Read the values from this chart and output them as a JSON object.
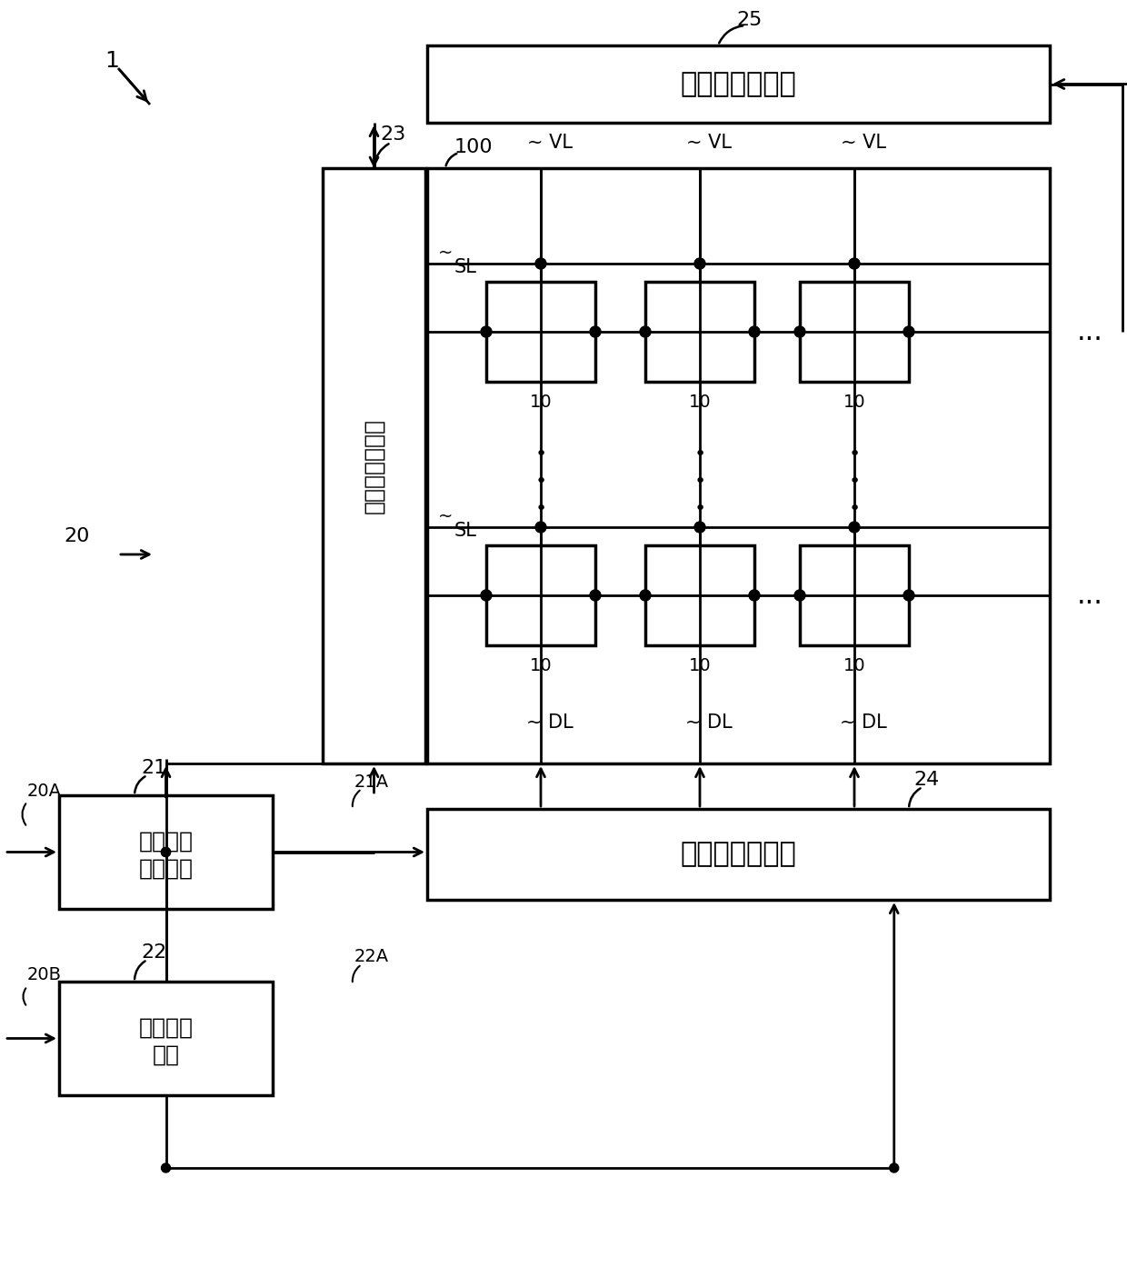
{
  "bg_color": "#ffffff",
  "lc": "#000000",
  "fig_w": 12.4,
  "fig_h": 13.94,
  "dpi": 100,
  "labels": {
    "ref1": "1",
    "ref20": "20",
    "ref20A": "20A",
    "ref20B": "20B",
    "ref21": "21",
    "ref22": "22",
    "ref23": "23",
    "ref24": "24",
    "ref25": "25",
    "ref100": "100",
    "ref10": "10",
    "ref21A": "21A",
    "ref22A": "22A",
    "label_SL": "SL",
    "label_VL": "~ VL",
    "label_DL": "~ DL",
    "label_power": "电源线驱动电路",
    "label_scan": "扫描线驱动电路",
    "label_signal": "信号线驱动电路",
    "label_video_l1": "视频信号",
    "label_video_l2": "处理电路",
    "label_timing_l1": "时序生成",
    "label_timing_l2": "电路",
    "dots": "...",
    "vdots": "⋮"
  }
}
